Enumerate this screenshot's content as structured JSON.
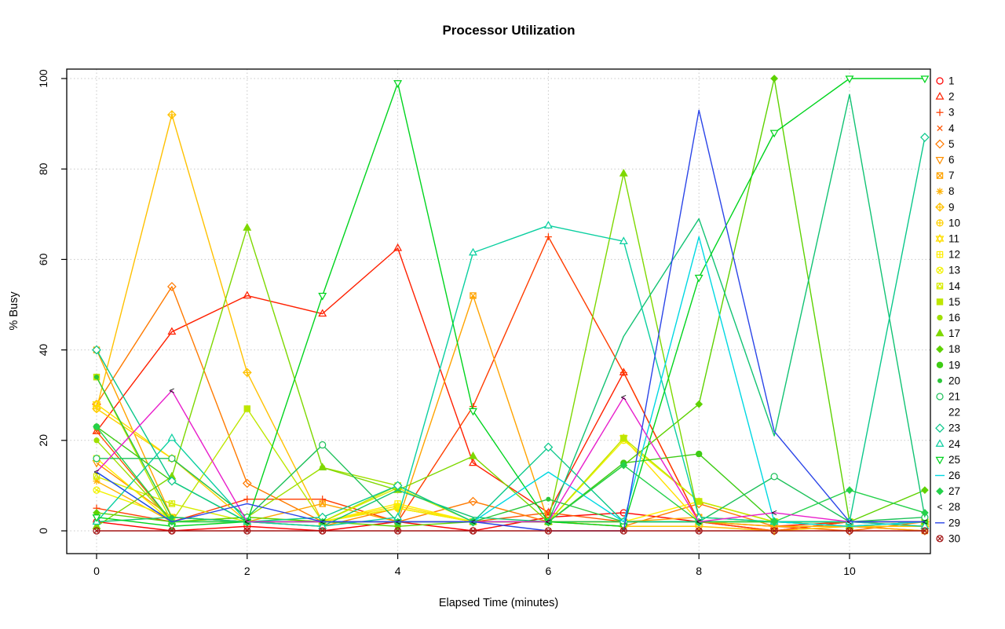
{
  "chart_data": {
    "type": "line",
    "title": "Processor Utilization",
    "xlabel": "Elapsed Time (minutes)",
    "ylabel": "% Busy",
    "x": [
      0,
      1,
      2,
      3,
      4,
      5,
      6,
      7,
      8,
      9,
      10,
      11
    ],
    "xlim": [
      0,
      11
    ],
    "ylim": [
      0,
      100
    ],
    "xticks": [
      0,
      2,
      4,
      6,
      8,
      10
    ],
    "yticks": [
      0,
      20,
      40,
      60,
      80,
      100
    ],
    "grid": "dotted-lightgray",
    "legend_position": "right-outside",
    "series": [
      {
        "name": "1",
        "color": "#FF0000",
        "marker": "circle-open",
        "values": [
          2,
          0,
          1,
          0,
          2,
          0,
          3,
          4,
          2,
          0,
          2,
          2
        ]
      },
      {
        "name": "2",
        "color": "#FF2000",
        "marker": "triangle-open",
        "values": [
          22,
          44,
          52,
          48,
          62.5,
          15,
          4,
          35,
          2,
          1,
          2,
          2
        ]
      },
      {
        "name": "3",
        "color": "#FF3D00",
        "marker": "plus",
        "values": [
          5,
          2,
          7,
          7,
          2,
          27.5,
          65,
          35,
          2,
          0,
          2,
          1
        ]
      },
      {
        "name": "4",
        "color": "#FF5400",
        "marker": "x",
        "values": [
          22,
          2,
          2,
          2,
          2,
          2,
          4,
          2,
          2,
          2,
          2,
          2
        ]
      },
      {
        "name": "5",
        "color": "#FF7A00",
        "marker": "diamond-open",
        "values": [
          28,
          54,
          10.5,
          2,
          2,
          6.5,
          2,
          1,
          6,
          1,
          0,
          2
        ]
      },
      {
        "name": "6",
        "color": "#FF9000",
        "marker": "triangle-down-open",
        "values": [
          15,
          3,
          2,
          1,
          5,
          2,
          2,
          2,
          2,
          2,
          1,
          0
        ]
      },
      {
        "name": "7",
        "color": "#FFA300",
        "marker": "square-x",
        "values": [
          40,
          3,
          2,
          6,
          2,
          52,
          2,
          2,
          3,
          2,
          1,
          0
        ]
      },
      {
        "name": "8",
        "color": "#FFB200",
        "marker": "asterisk",
        "values": [
          11,
          2,
          2,
          2,
          2,
          2,
          2,
          2,
          2,
          1,
          1,
          2
        ]
      },
      {
        "name": "9",
        "color": "#FFC100",
        "marker": "diamond-plus",
        "values": [
          27,
          92,
          35,
          2,
          5,
          2,
          2,
          1,
          1,
          0,
          1,
          1
        ]
      },
      {
        "name": "10",
        "color": "#FFD000",
        "marker": "circle-plus",
        "values": [
          27,
          16,
          2,
          2,
          2,
          2,
          2,
          2,
          2,
          2,
          2,
          2
        ]
      },
      {
        "name": "11",
        "color": "#FFDF00",
        "marker": "star-david",
        "values": [
          28,
          16,
          3,
          2,
          5.5,
          2,
          2,
          20.5,
          2,
          2,
          2,
          2
        ]
      },
      {
        "name": "12",
        "color": "#FFEE00",
        "marker": "square-plus",
        "values": [
          16,
          2,
          2,
          2,
          6,
          2,
          2,
          2,
          6.5,
          2,
          2,
          2
        ]
      },
      {
        "name": "13",
        "color": "#F2F200",
        "marker": "circle-x",
        "values": [
          9,
          3,
          2,
          2,
          5,
          2,
          2,
          20,
          6.5,
          2,
          2,
          2
        ]
      },
      {
        "name": "14",
        "color": "#D8EC00",
        "marker": "square-triangle",
        "values": [
          12,
          6,
          2,
          2,
          9.5,
          2,
          2,
          2,
          2,
          2,
          2,
          2
        ]
      },
      {
        "name": "15",
        "color": "#BEE600",
        "marker": "square-filled",
        "values": [
          34,
          2,
          27,
          2,
          10,
          2,
          2,
          20.5,
          6.5,
          2,
          2,
          2
        ]
      },
      {
        "name": "16",
        "color": "#9FDF00",
        "marker": "circle-filled-small",
        "values": [
          20,
          2,
          3,
          14,
          10,
          2,
          2,
          2,
          2,
          2,
          2,
          2
        ]
      },
      {
        "name": "17",
        "color": "#7ED800",
        "marker": "triangle-filled",
        "values": [
          1,
          12,
          67,
          14,
          9,
          16.5,
          2,
          79,
          3,
          2,
          1,
          2
        ]
      },
      {
        "name": "18",
        "color": "#5ED200",
        "marker": "diamond-filled",
        "values": [
          4,
          2,
          3,
          2,
          1,
          2,
          2,
          14.5,
          28,
          100,
          2,
          9
        ]
      },
      {
        "name": "19",
        "color": "#3ECC15",
        "marker": "circle-filled",
        "values": [
          23,
          11,
          2,
          2,
          2,
          2,
          2,
          15,
          17,
          2,
          2,
          2
        ]
      },
      {
        "name": "20",
        "color": "#2CC63B",
        "marker": "bullet",
        "values": [
          34,
          3,
          2,
          2,
          2,
          2,
          7,
          2,
          2,
          2,
          2,
          2
        ]
      },
      {
        "name": "21",
        "color": "#1DC15A",
        "marker": "circle-white",
        "values": [
          16,
          16,
          3,
          19,
          2,
          2,
          2,
          2,
          2,
          12,
          2,
          3
        ]
      },
      {
        "name": "22",
        "color": "#12C374",
        "marker": "square-white",
        "values": [
          2,
          3,
          2,
          1,
          9,
          3,
          2,
          43,
          69,
          21,
          96.5,
          3
        ]
      },
      {
        "name": "23",
        "color": "#0BC88B",
        "marker": "diamond-white",
        "values": [
          40,
          11,
          2,
          3,
          10,
          2,
          18.5,
          2,
          2,
          2,
          2,
          87
        ]
      },
      {
        "name": "24",
        "color": "#0ACFA0",
        "marker": "triangle-white",
        "values": [
          2,
          20.5,
          2,
          1,
          3,
          61.5,
          67.5,
          64,
          3,
          2,
          2,
          1
        ]
      },
      {
        "name": "25",
        "color": "#00D41E",
        "marker": "triangle-down-white",
        "values": [
          3,
          1,
          2,
          52,
          99,
          26.5,
          2,
          1,
          56,
          88,
          100,
          100
        ]
      },
      {
        "name": "26",
        "color": "#00D8E2",
        "marker": "none",
        "values": [
          13,
          2,
          2,
          2,
          2,
          2,
          13,
          2,
          65,
          2,
          1,
          2
        ]
      },
      {
        "name": "27",
        "color": "#24D14B",
        "marker": "diamond-filled",
        "values": [
          23,
          2,
          2,
          2,
          2,
          2,
          2,
          14.5,
          2,
          2,
          9,
          4
        ]
      },
      {
        "name": "28",
        "color": "#E81ECB",
        "marker": "chevron",
        "values": [
          13,
          31,
          2,
          2,
          2,
          2,
          2,
          29.5,
          2,
          4,
          2,
          2
        ]
      },
      {
        "name": "29",
        "color": "#2B45E8",
        "marker": "none",
        "values": [
          13,
          2,
          6,
          2,
          2,
          2,
          0,
          0,
          93,
          22,
          2,
          2
        ]
      },
      {
        "name": "30",
        "color": "#A31515",
        "marker": "circle-cross",
        "values": [
          0,
          0,
          0,
          0,
          0,
          0,
          0,
          0,
          0,
          0,
          0,
          0
        ]
      }
    ]
  }
}
